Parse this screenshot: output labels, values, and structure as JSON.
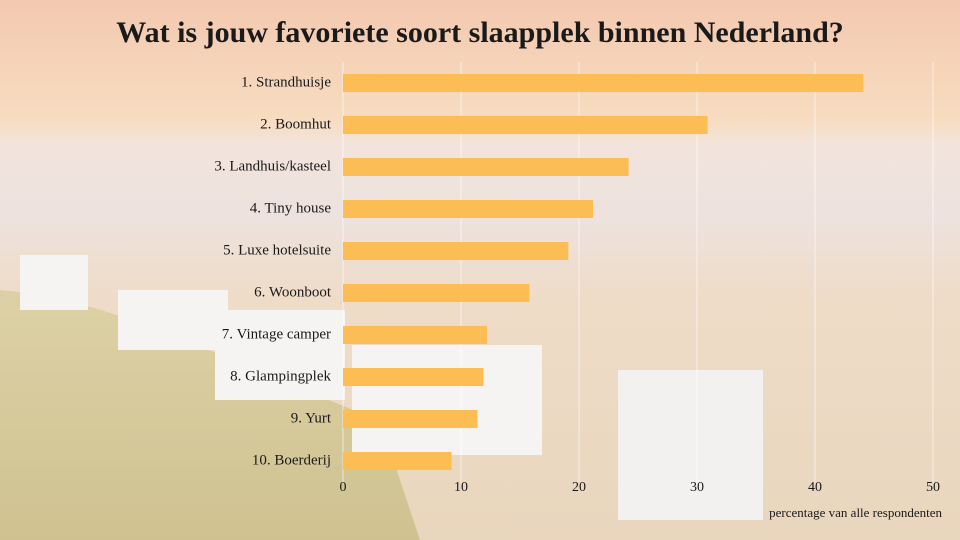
{
  "chart_data": {
    "type": "barh",
    "title": "Wat is jouw favoriete soort slaapplek binnen Nederland?",
    "categories": [
      "1. Strandhuisje",
      "2. Boomhut",
      "3. Landhuis/kasteel",
      "4. Tiny house",
      "5. Luxe hotelsuite",
      "6. Woonboot",
      "7. Vintage camper",
      "8. Glampingplek",
      "9. Yurt",
      "10. Boerderij"
    ],
    "values": [
      44.1,
      30.9,
      24.2,
      21.2,
      19.1,
      15.8,
      12.2,
      11.9,
      11.4,
      9.2
    ],
    "color": "#fdbd55",
    "xlabel": "percentage van alle respondenten",
    "xlim": [
      0,
      50
    ],
    "xticks": [
      0,
      10,
      20,
      30,
      40,
      50
    ],
    "grid": true
  }
}
